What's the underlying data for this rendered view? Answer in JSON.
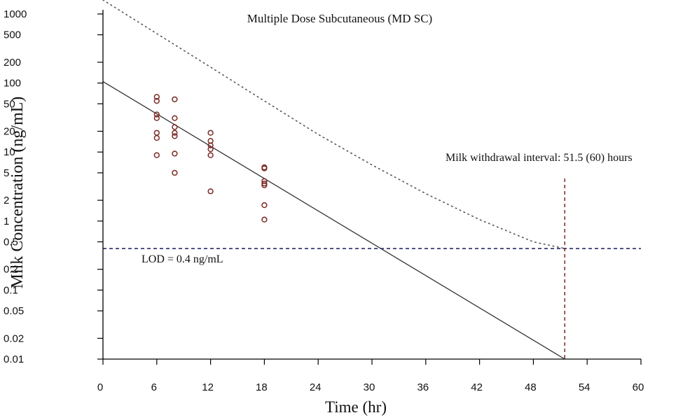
{
  "chart_data": {
    "type": "scatter",
    "title": "Multiple Dose Subcutaneous (MD SC)",
    "xlabel": "Time (hr)",
    "ylabel": "Milk Concentration (ng/mL)",
    "yscale": "log",
    "xlim": [
      0,
      60
    ],
    "ylim": [
      0.01,
      1000
    ],
    "grid": false,
    "x_ticks": [
      0,
      6,
      12,
      18,
      24,
      30,
      36,
      42,
      48,
      54,
      60
    ],
    "y_ticks": [
      1000,
      500,
      200,
      100,
      50,
      20,
      10,
      5,
      2,
      1,
      0.5,
      0.2,
      0.1,
      0.05,
      0.02,
      0.01
    ],
    "y_tick_labels": [
      "1000",
      "500",
      "200",
      "100",
      "50",
      "20",
      "10",
      "5",
      "2",
      "1",
      "0.5",
      "0.2",
      "0.1",
      "0.05",
      "0.02",
      "0.01"
    ],
    "colors": {
      "points": "#7b2a24",
      "regression": "#333333",
      "tolerance": "#555555",
      "lod": "#2a2a6e",
      "withdrawal": "#7b2a24"
    },
    "points": [
      [
        6,
        63
      ],
      [
        6,
        55
      ],
      [
        6,
        35
      ],
      [
        6,
        31
      ],
      [
        6,
        19
      ],
      [
        6,
        16
      ],
      [
        6,
        9
      ],
      [
        8,
        58
      ],
      [
        8,
        31
      ],
      [
        8,
        23
      ],
      [
        8,
        19
      ],
      [
        8,
        17
      ],
      [
        8,
        9.5
      ],
      [
        8,
        5
      ],
      [
        12,
        19
      ],
      [
        12,
        14.5
      ],
      [
        12,
        12.5
      ],
      [
        12,
        11
      ],
      [
        12,
        9
      ],
      [
        12,
        2.7
      ],
      [
        18,
        6
      ],
      [
        18,
        5.8
      ],
      [
        18,
        3.8
      ],
      [
        18,
        3.5
      ],
      [
        18,
        3.3
      ],
      [
        18,
        1.7
      ],
      [
        18,
        1.05
      ]
    ],
    "regression_line": {
      "x": [
        0,
        51.5
      ],
      "y": [
        105,
        0.01
      ]
    },
    "tolerance_line": {
      "x": [
        0,
        6,
        12,
        18,
        24,
        30,
        36,
        42,
        48,
        51.5
      ],
      "y": [
        1600,
        520,
        170,
        55,
        18,
        6.5,
        2.5,
        1.05,
        0.5,
        0.4
      ]
    },
    "lod": {
      "value": 0.4,
      "label": "LOD = 0.4 ng/mL"
    },
    "withdrawal": {
      "x": 51.5,
      "label": "Milk withdrawal interval: 51.5 (60) hours"
    }
  }
}
